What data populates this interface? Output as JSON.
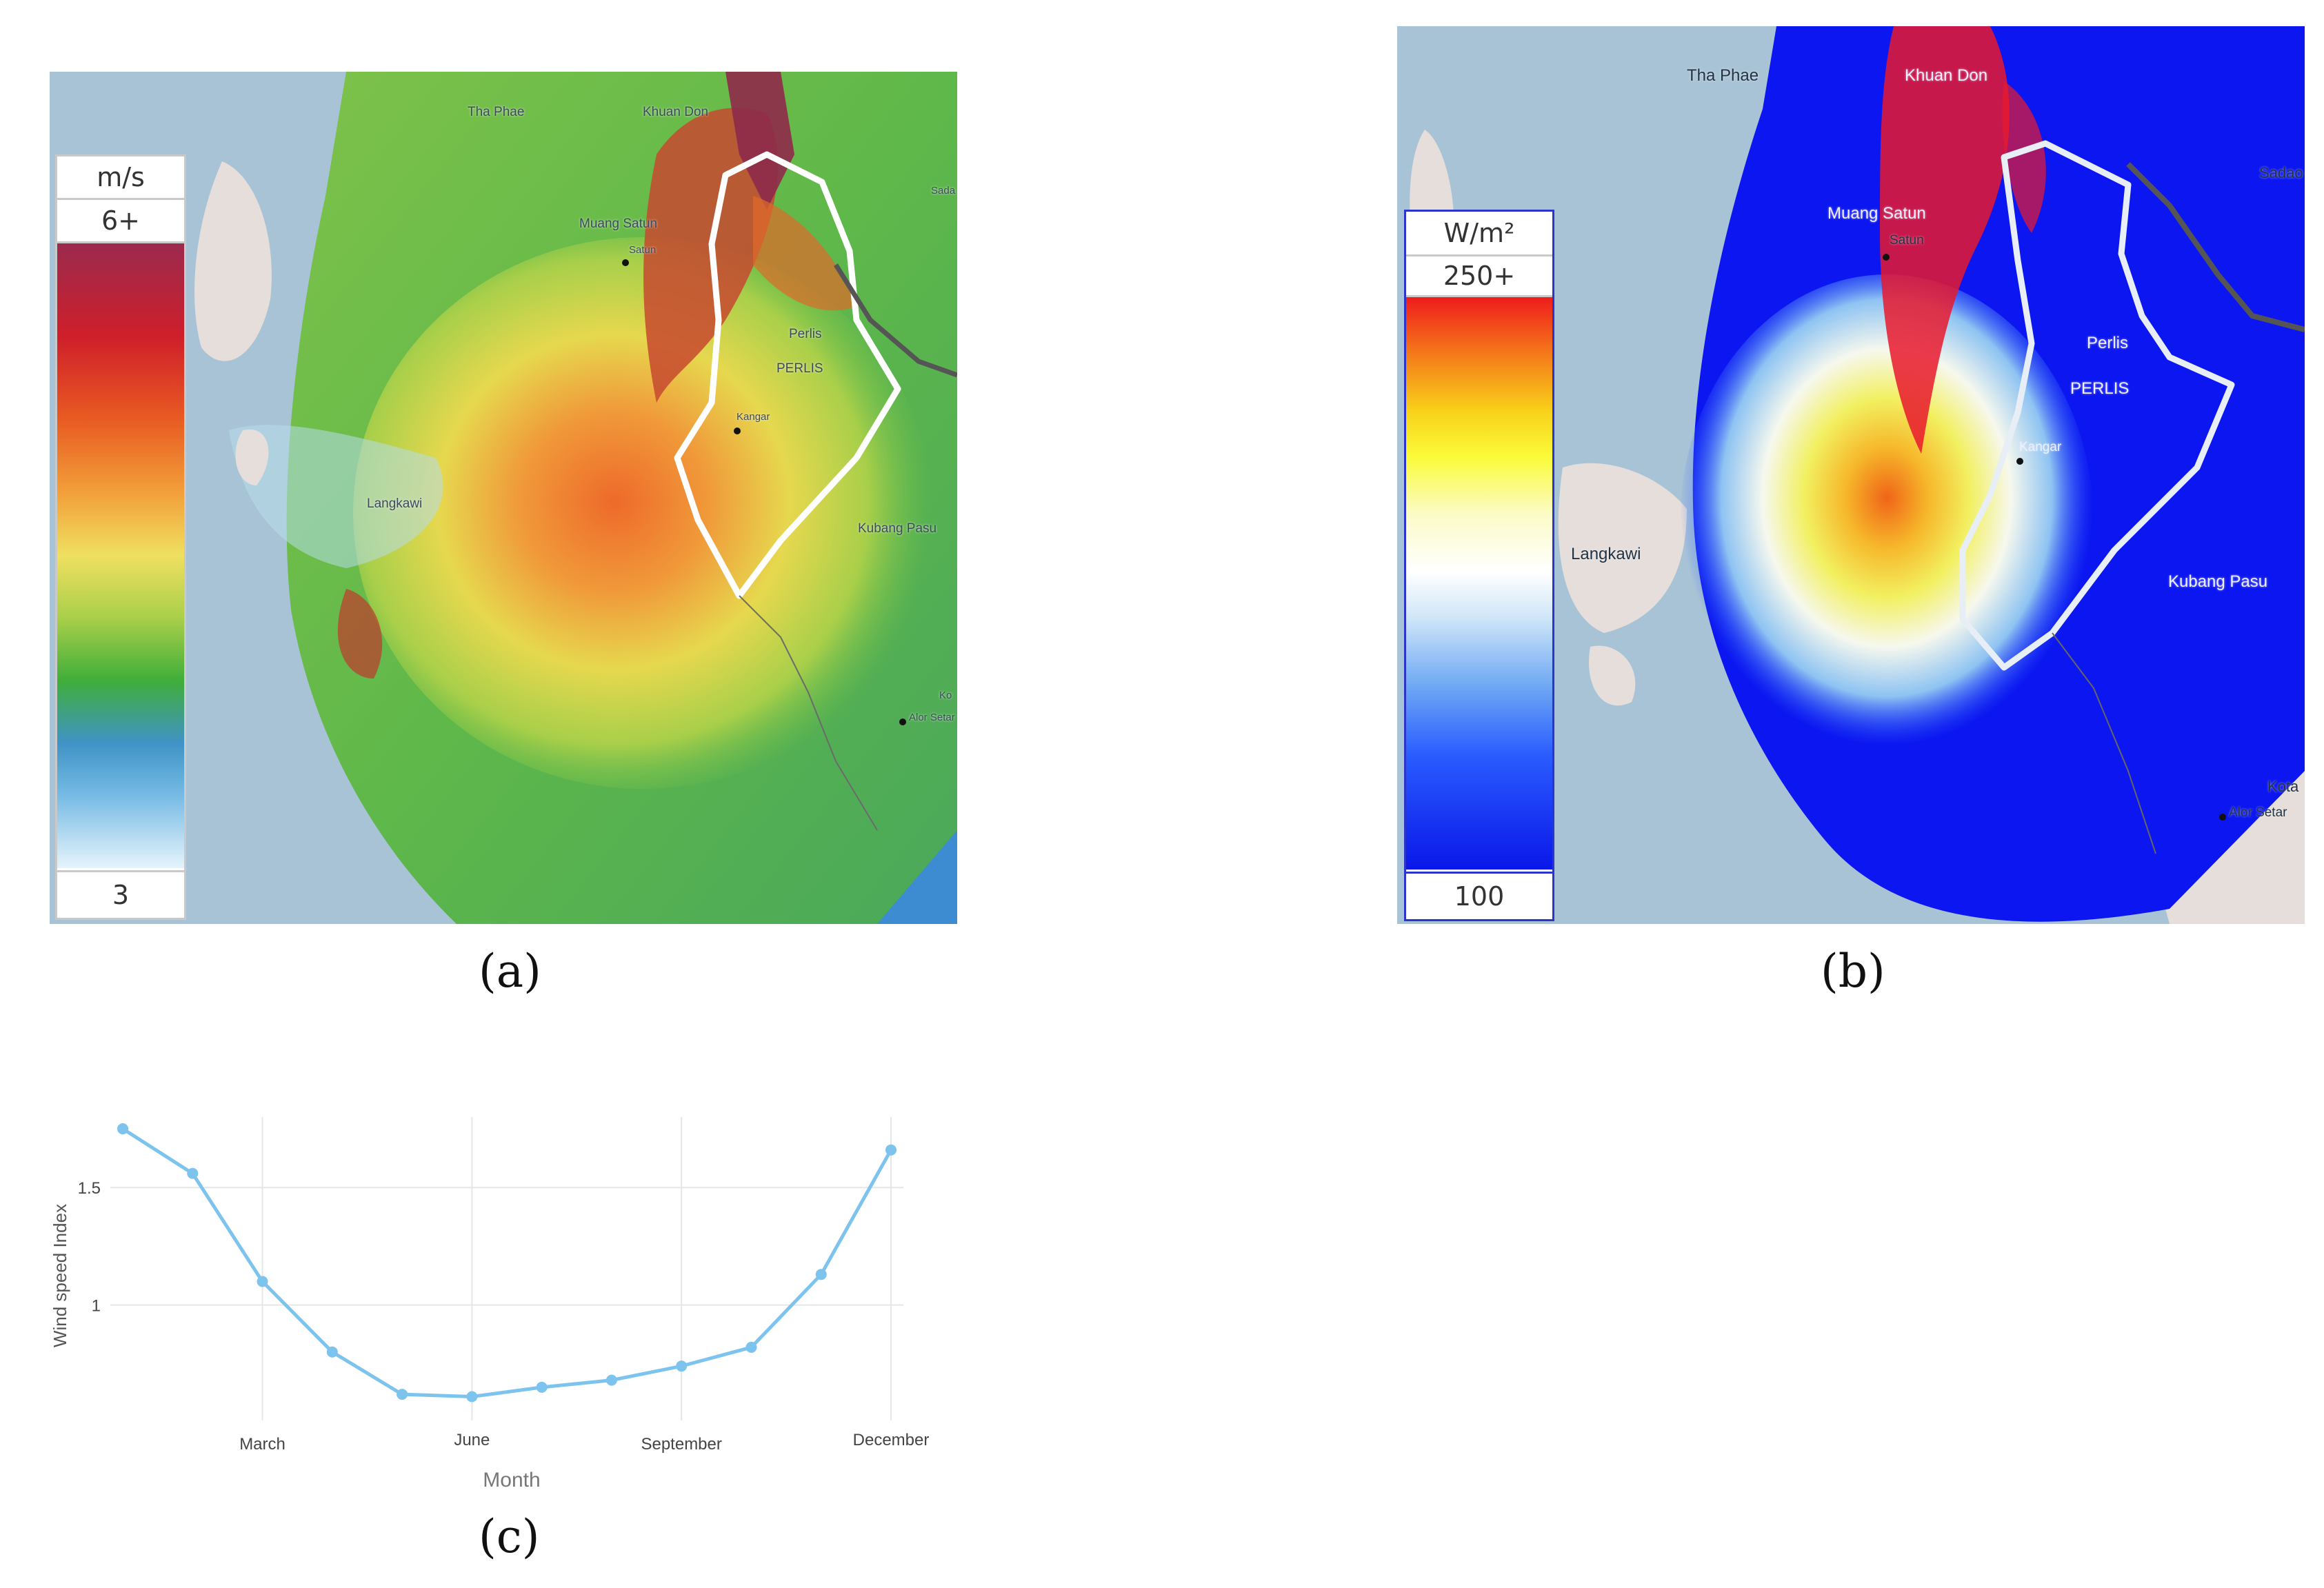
{
  "captions": {
    "a": "(a)",
    "b": "(b)",
    "c": "(c)"
  },
  "legend_a": {
    "unit": "m/s",
    "max": "6+",
    "min": "3"
  },
  "legend_b": {
    "unit": "W/m²",
    "max": "250+",
    "min": "100"
  },
  "places_a": {
    "tha_phae": "Tha Phae",
    "khuan_don": "Khuan Don",
    "muang_satun": "Muang Satun",
    "satun": "Satun",
    "perlis_town": "Perlis",
    "perlis": "PERLIS",
    "kangar": "Kangar",
    "langkawi": "Langkawi",
    "kubang_pasu": "Kubang Pasu",
    "alor_setar": "Alor Setar",
    "sadao": "Sada",
    "kota": "Ko"
  },
  "places_b": {
    "tha_phae": "Tha Phae",
    "khuan_don": "Khuan Don",
    "muang_satun": "Muang Satun",
    "satun": "Satun",
    "perlis_town": "Perlis",
    "perlis": "PERLIS",
    "kangar": "Kangar",
    "langkawi": "Langkawi",
    "kubang_pasu": "Kubang Pasu",
    "alor_setar": "Alor Setar",
    "sadao": "Sadao",
    "kota": "Kota"
  },
  "colors": {
    "sea": "#a9c3d6",
    "land": "#e6dedb",
    "boundary": "#ffffff",
    "line_series": "#7cc3ee"
  },
  "chart_data": {
    "type": "line",
    "xlabel": "Month",
    "ylabel": "Wind speed Index",
    "x": [
      1,
      2,
      3,
      4,
      5,
      6,
      7,
      8,
      9,
      10,
      11,
      12
    ],
    "values": [
      1.75,
      1.56,
      1.1,
      0.8,
      0.62,
      0.61,
      0.65,
      0.68,
      0.74,
      0.82,
      1.13,
      1.66
    ],
    "x_ticks": [
      {
        "value": 3,
        "label": "March"
      },
      {
        "value": 6,
        "label": "June"
      },
      {
        "value": 9,
        "label": "September"
      },
      {
        "value": 12,
        "label": "December"
      }
    ],
    "y_ticks": [
      {
        "value": 1,
        "label": "1"
      },
      {
        "value": 1.5,
        "label": "1.5"
      }
    ],
    "xlim": [
      1,
      12
    ],
    "ylim": [
      0.45,
      1.8
    ],
    "grid": true,
    "color": "#7cc3ee"
  }
}
